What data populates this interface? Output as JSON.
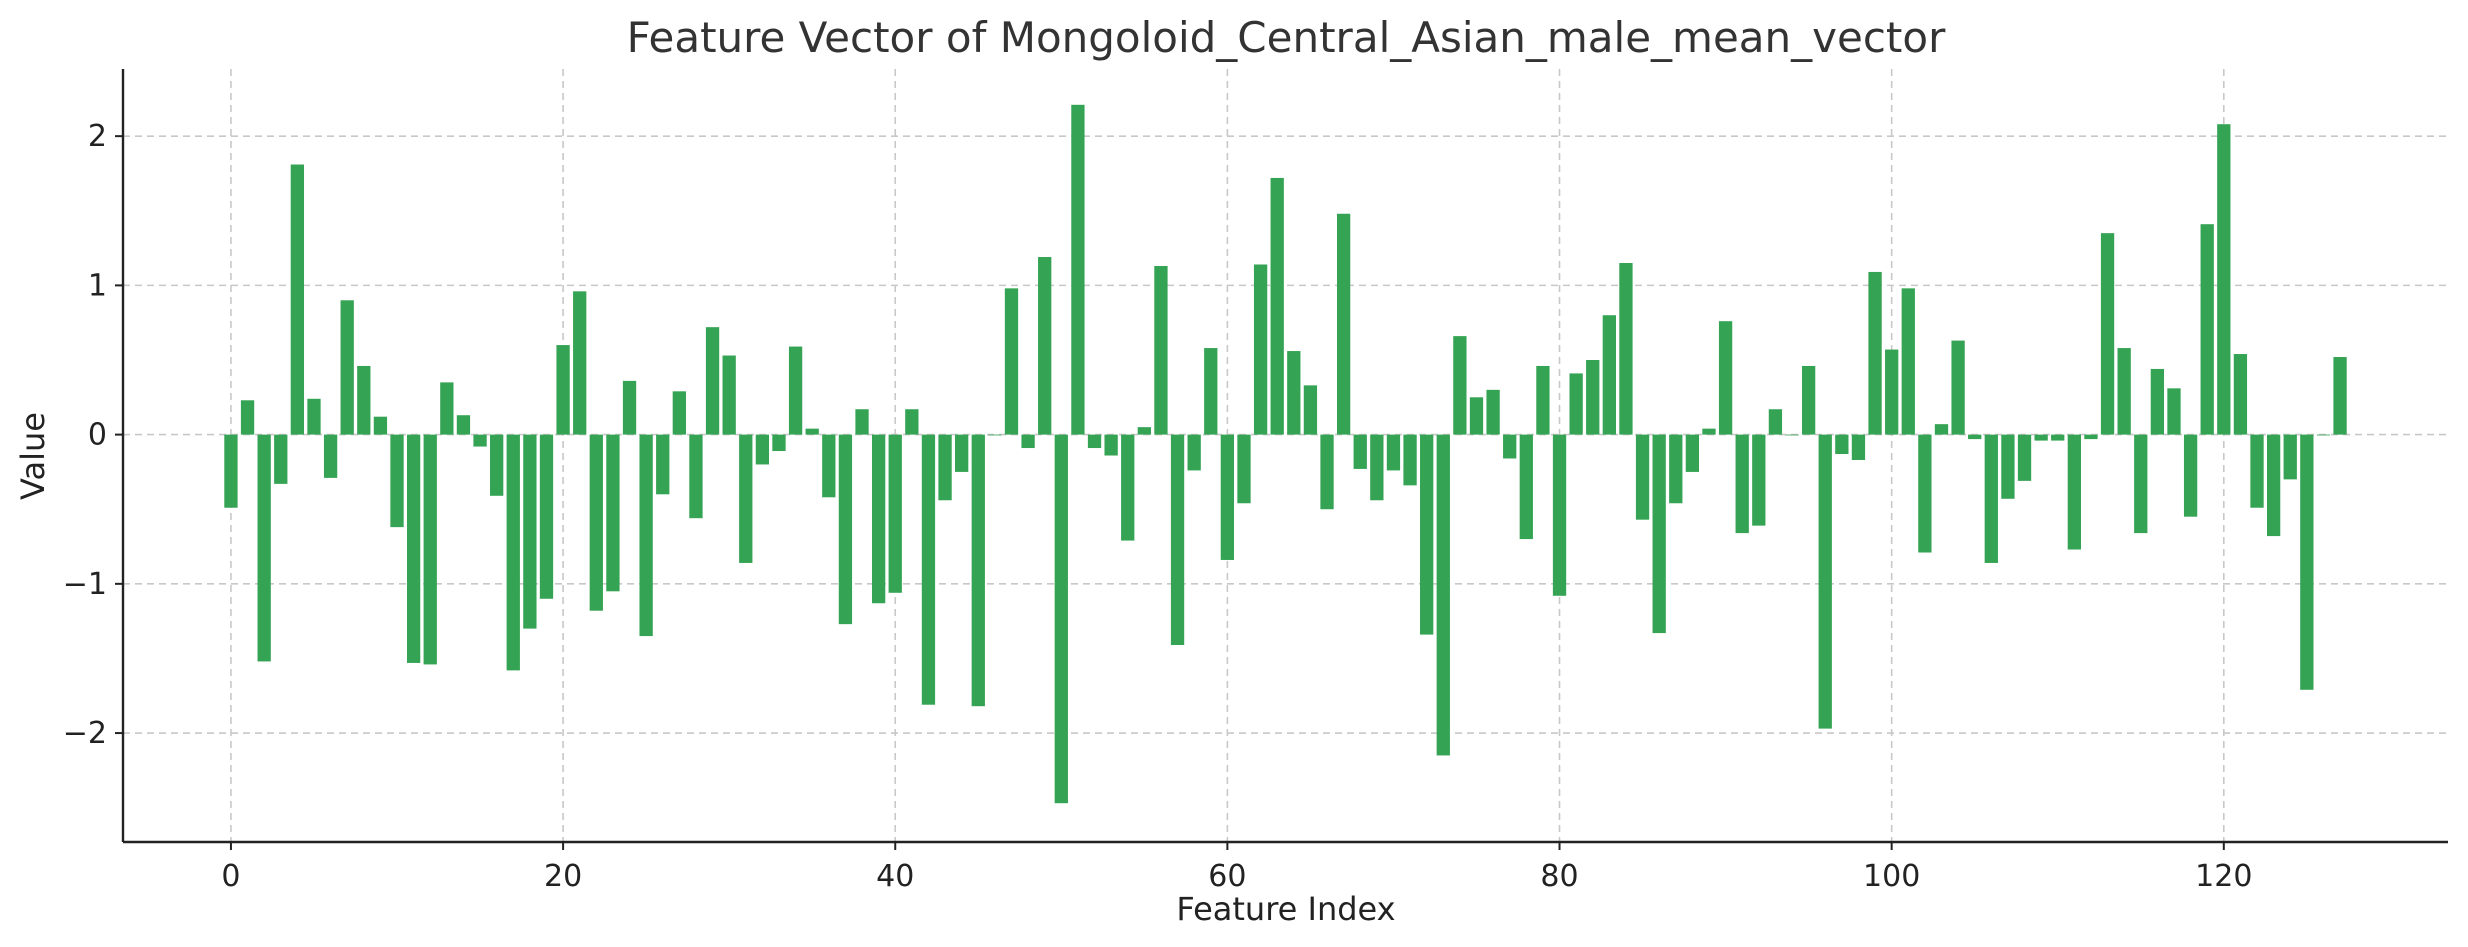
{
  "chart_data": {
    "type": "bar",
    "title": "Feature Vector of Mongoloid_Central_Asian_male_mean_vector",
    "xlabel": "Feature Index",
    "ylabel": "Value",
    "xlim": [
      -6.5,
      133.5
    ],
    "ylim": [
      -2.73,
      2.45
    ],
    "xticks": [
      0,
      20,
      40,
      60,
      80,
      100,
      120
    ],
    "xtick_labels": [
      "0",
      "20",
      "40",
      "60",
      "80",
      "100",
      "120"
    ],
    "yticks": [
      -2,
      -1,
      0,
      1,
      2
    ],
    "ytick_labels": [
      "−2",
      "−1",
      "0",
      "1",
      "2"
    ],
    "grid": true,
    "bar_color": "#34a353",
    "x": [
      0,
      1,
      2,
      3,
      4,
      5,
      6,
      7,
      8,
      9,
      10,
      11,
      12,
      13,
      14,
      15,
      16,
      17,
      18,
      19,
      20,
      21,
      22,
      23,
      24,
      25,
      26,
      27,
      28,
      29,
      30,
      31,
      32,
      33,
      34,
      35,
      36,
      37,
      38,
      39,
      40,
      41,
      42,
      43,
      44,
      45,
      46,
      47,
      48,
      49,
      50,
      51,
      52,
      53,
      54,
      55,
      56,
      57,
      58,
      59,
      60,
      61,
      62,
      63,
      64,
      65,
      66,
      67,
      68,
      69,
      70,
      71,
      72,
      73,
      74,
      75,
      76,
      77,
      78,
      79,
      80,
      81,
      82,
      83,
      84,
      85,
      86,
      87,
      88,
      89,
      90,
      91,
      92,
      93,
      94,
      95,
      96,
      97,
      98,
      99,
      100,
      101,
      102,
      103,
      104,
      105,
      106,
      107,
      108,
      109,
      110,
      111,
      112,
      113,
      114,
      115,
      116,
      117,
      118,
      119,
      120,
      121,
      122,
      123,
      124,
      125,
      126,
      127
    ],
    "values": [
      -0.49,
      0.23,
      -1.52,
      -0.33,
      1.81,
      0.24,
      -0.29,
      0.9,
      0.46,
      0.12,
      -0.62,
      -1.53,
      -1.54,
      0.35,
      0.13,
      -0.08,
      -0.41,
      -1.58,
      -1.3,
      -1.1,
      0.6,
      0.96,
      -1.18,
      -1.05,
      0.36,
      -1.35,
      -0.4,
      0.29,
      -0.56,
      0.72,
      0.53,
      -0.86,
      -0.2,
      -0.11,
      0.59,
      0.04,
      -0.42,
      -1.27,
      0.17,
      -1.13,
      -1.06,
      0.17,
      -1.81,
      -0.44,
      -0.25,
      -1.82,
      0.0,
      0.98,
      -0.09,
      1.19,
      -2.47,
      2.21,
      -0.09,
      -0.14,
      -0.71,
      0.05,
      1.13,
      -1.41,
      -0.24,
      0.58,
      -0.84,
      -0.46,
      1.14,
      1.72,
      0.56,
      0.33,
      -0.5,
      1.48,
      -0.23,
      -0.44,
      -0.24,
      -0.34,
      -1.34,
      -2.15,
      0.66,
      0.25,
      0.3,
      -0.16,
      -0.7,
      0.46,
      -1.08,
      0.41,
      0.5,
      0.8,
      1.15,
      -0.57,
      -1.33,
      -0.46,
      -0.25,
      0.04,
      0.76,
      -0.66,
      -0.61,
      0.17,
      0.0,
      0.46,
      -1.97,
      -0.13,
      -0.17,
      1.09,
      0.57,
      0.98,
      -0.79,
      0.07,
      0.63,
      -0.03,
      -0.86,
      -0.43,
      -0.31,
      -0.04,
      -0.04,
      -0.77,
      -0.03,
      1.35,
      0.58,
      -0.66,
      0.44,
      0.31,
      -0.55,
      1.41,
      2.08,
      0.54,
      -0.49,
      -0.68,
      -0.3,
      -1.71,
      0.0,
      0.52
    ]
  }
}
